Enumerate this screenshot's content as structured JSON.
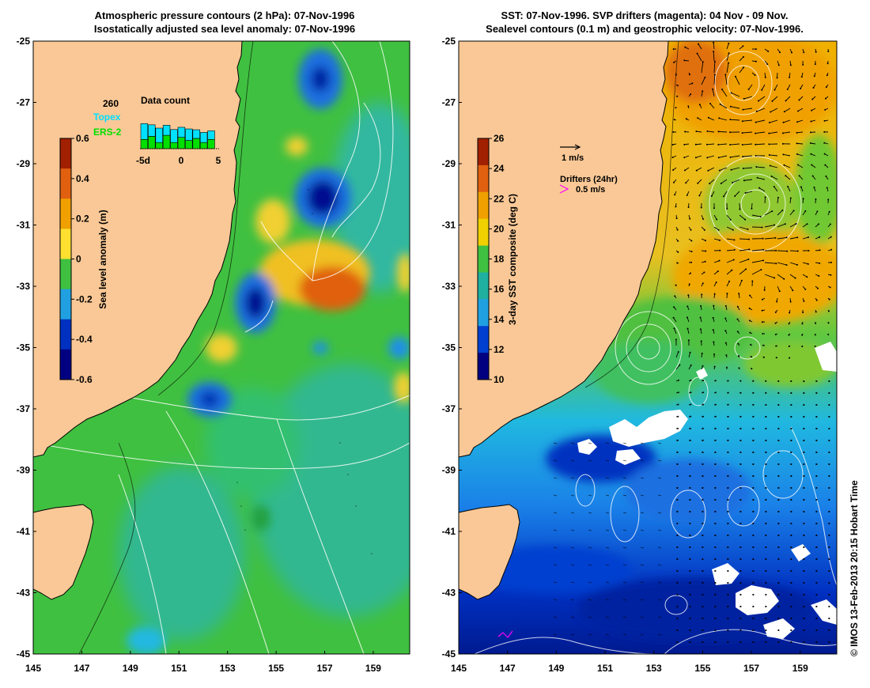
{
  "left_panel": {
    "title_line1": "Atmospheric pressure contours (2 hPa): 07-Nov-1996",
    "title_line2": "Isostatically adjusted sea level anomaly: 07-Nov-1996",
    "colorbar": {
      "label": "Sea level anomaly (m)",
      "ticks": [
        "0.6",
        "0.4",
        "0.2",
        "0",
        "-0.2",
        "-0.4",
        "-0.6"
      ],
      "colors": [
        "#a02000",
        "#e06010",
        "#f0a000",
        "#ffe030",
        "#40c040",
        "#20a0e0",
        "#0030c0",
        "#000080"
      ]
    },
    "data_count": {
      "title": "Data count",
      "max_label": "260",
      "series": [
        {
          "name": "Topex",
          "color": "#00e0ff"
        },
        {
          "name": "ERS-2",
          "color": "#00e000"
        }
      ],
      "x_ticks": [
        "-5d",
        "0",
        "5"
      ],
      "bars": [
        {
          "topex": 0.55,
          "ers": 0.45
        },
        {
          "topex": 0.4,
          "ers": 0.6
        },
        {
          "topex": 0.5,
          "ers": 0.3
        },
        {
          "topex": 0.35,
          "ers": 0.65
        },
        {
          "topex": 0.45,
          "ers": 0.3
        },
        {
          "topex": 0.35,
          "ers": 0.55
        },
        {
          "topex": 0.4,
          "ers": 0.4
        },
        {
          "topex": 0.3,
          "ers": 0.5
        },
        {
          "topex": 0.35,
          "ers": 0.3
        },
        {
          "topex": 0.3,
          "ers": 0.45
        }
      ]
    }
  },
  "right_panel": {
    "title_line1": "SST: 07-Nov-1996. SVP drifters (magenta): 04 Nov - 09 Nov.",
    "title_line2": "Sealevel contours (0.1 m) and geostrophic velocity: 07-Nov-1996.",
    "colorbar": {
      "label": "3-day SST composite (deg C)",
      "ticks": [
        "26",
        "24",
        "22",
        "20",
        "18",
        "16",
        "14",
        "12",
        "10"
      ],
      "colors": [
        "#a02000",
        "#e06010",
        "#f0a000",
        "#f0d000",
        "#40c040",
        "#20b0a0",
        "#20a0e0",
        "#0040d0",
        "#000080"
      ]
    },
    "velocity_scale_label": "1 m/s",
    "drifters_title": "Drifters (24hr)",
    "drifters_scale_label": "0.5 m/s"
  },
  "axes": {
    "lat_ticks": [
      "-25",
      "-27",
      "-29",
      "-31",
      "-33",
      "-35",
      "-37",
      "-39",
      "-41",
      "-43",
      "-45"
    ],
    "lon_ticks": [
      "145",
      "147",
      "149",
      "151",
      "153",
      "155",
      "157",
      "159"
    ],
    "lat_range": [
      -45,
      -25
    ],
    "lon_range": [
      145,
      160.5
    ]
  },
  "credit": "© IMOS 13-Feb-2013 20:15 Hobart Time",
  "colors": {
    "land": "#f9c896",
    "ocean_mid": "#40c040",
    "ocean_cold": "#1a78e8",
    "ocean_deep": "#0022b0",
    "warm": "#f0a000",
    "contour": "#ffffff",
    "drifter": "#ff00ff"
  }
}
